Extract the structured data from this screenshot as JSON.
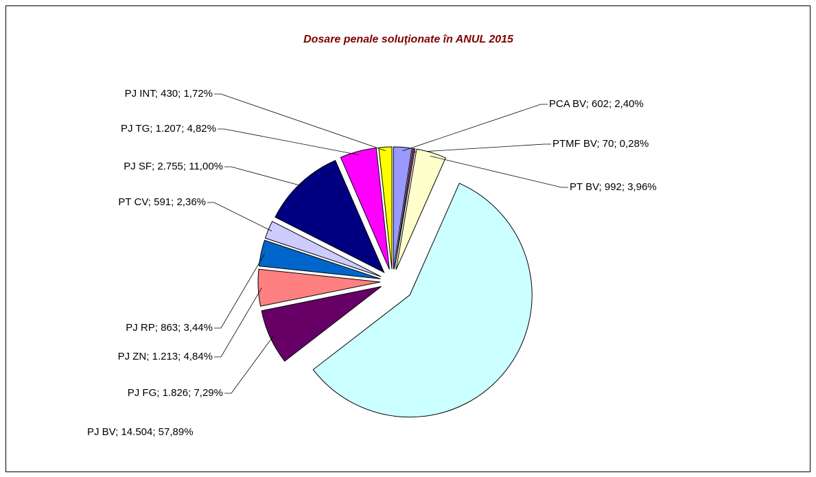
{
  "chart_data": {
    "type": "pie",
    "title": "Dosare penale soluţionate în ANUL 2015",
    "categories": [
      "PCA BV",
      "PTMF BV",
      "PT BV",
      "PJ BV",
      "PJ FG",
      "PJ ZN",
      "PJ RP",
      "PT CV",
      "PJ SF",
      "PJ TG",
      "PJ INT"
    ],
    "values": [
      602,
      70,
      992,
      14504,
      1826,
      1213,
      863,
      591,
      2755,
      1207,
      430
    ],
    "value_labels": [
      "PCA BV; 602; 2,40%",
      "PTMF BV; 70; 0,28%",
      "PT BV; 992; 3,96%",
      "PJ BV; 14.504; 57,89%",
      "PJ FG; 1.826; 7,29%",
      "PJ ZN; 1.213; 4,84%",
      "PJ RP; 863; 3,44%",
      "PT CV; 591; 2,36%",
      "PJ SF; 2.755; 11,00%",
      "PJ TG; 1.207; 4,82%",
      "PJ INT; 430; 1,72%"
    ],
    "colors": [
      "#9999ff",
      "#993366",
      "#ffffcc",
      "#ccffff",
      "#660066",
      "#ff8080",
      "#0066cc",
      "#ccccff",
      "#000080",
      "#ff00ff",
      "#ffff00"
    ]
  }
}
